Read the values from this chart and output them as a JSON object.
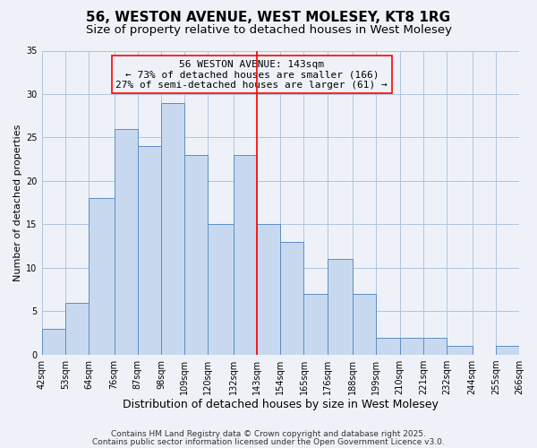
{
  "title": "56, WESTON AVENUE, WEST MOLESEY, KT8 1RG",
  "subtitle": "Size of property relative to detached houses in West Molesey",
  "xlabel": "Distribution of detached houses by size in West Molesey",
  "ylabel": "Number of detached properties",
  "bin_edges": [
    42,
    53,
    64,
    76,
    87,
    98,
    109,
    120,
    132,
    143,
    154,
    165,
    176,
    188,
    199,
    210,
    221,
    232,
    244,
    255,
    266
  ],
  "counts": [
    3,
    6,
    18,
    26,
    24,
    29,
    23,
    15,
    23,
    15,
    13,
    7,
    11,
    7,
    2,
    2,
    2,
    1,
    0,
    1
  ],
  "bar_color": "#c8d9ef",
  "bar_edge_color": "#5a8fc3",
  "reference_line_x": 143,
  "reference_line_color": "red",
  "annotation_line1": "56 WESTON AVENUE: 143sqm",
  "annotation_line2": "← 73% of detached houses are smaller (166)",
  "annotation_line3": "27% of semi-detached houses are larger (61) →",
  "annotation_box_edge_color": "red",
  "ylim": [
    0,
    35
  ],
  "yticks": [
    0,
    5,
    10,
    15,
    20,
    25,
    30,
    35
  ],
  "grid_color": "#b0c4de",
  "background_color": "#eef2f8",
  "footer_line1": "Contains HM Land Registry data © Crown copyright and database right 2025.",
  "footer_line2": "Contains public sector information licensed under the Open Government Licence v3.0.",
  "title_fontsize": 11,
  "subtitle_fontsize": 9.5,
  "xlabel_fontsize": 9,
  "ylabel_fontsize": 8,
  "tick_fontsize": 7,
  "annotation_fontsize": 8,
  "footer_fontsize": 6.5
}
